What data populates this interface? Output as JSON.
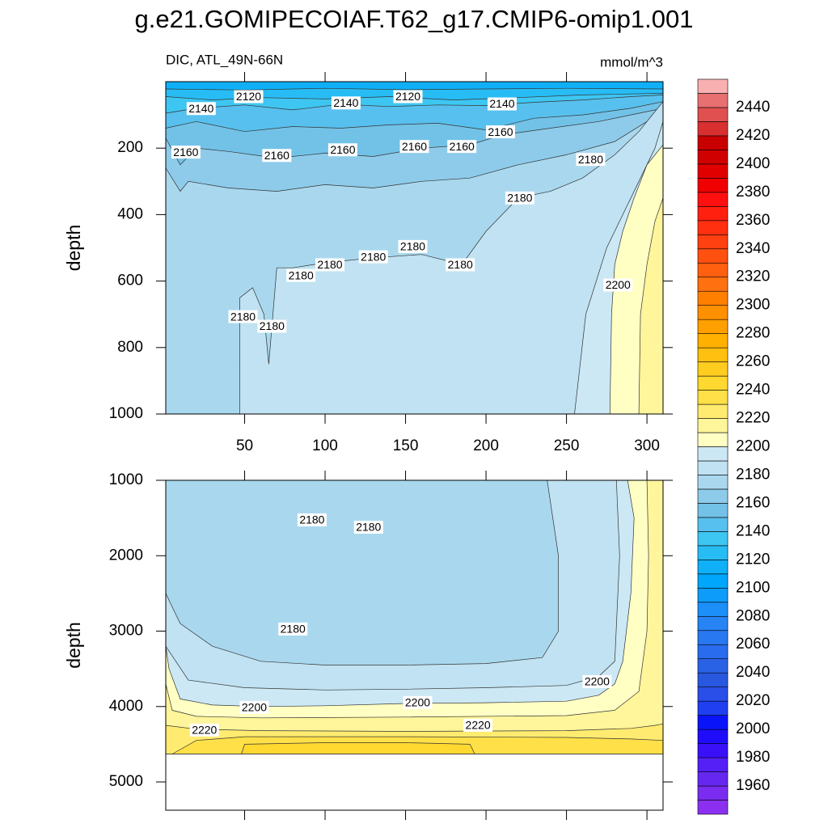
{
  "title": "g.e21.GOMIPECOIAF.T62_g17.CMIP6-omip1.001",
  "chart_data": [
    {
      "type": "contour",
      "subtitle_left": "DIC, ATL_49N-66N",
      "subtitle_right": "mmol/m^3",
      "y_label": "depth",
      "xlim": [
        1,
        310
      ],
      "xticks": [
        50,
        100,
        150,
        200,
        250,
        300
      ],
      "show_xtick_labels": true,
      "ylim": [
        0,
        1000
      ],
      "yticks": [
        200,
        400,
        600,
        800,
        1000
      ],
      "y_reversed": true,
      "base_level": 2110,
      "data_ylim": [
        0,
        1000
      ],
      "contours": [
        {
          "level": 2120,
          "x": [
            1,
            50,
            100,
            150,
            200,
            250,
            310,
            310,
            1
          ],
          "y": [
            22,
            25,
            20,
            24,
            22,
            20,
            22,
            1000,
            1000
          ]
        },
        {
          "level": 2130,
          "x": [
            1,
            30,
            60,
            100,
            140,
            180,
            220,
            260,
            310,
            310,
            1
          ],
          "y": [
            45,
            55,
            48,
            52,
            45,
            55,
            48,
            40,
            35,
            1000,
            1000
          ]
        },
        {
          "level": 2140,
          "x": [
            1,
            20,
            50,
            80,
            110,
            140,
            170,
            200,
            230,
            260,
            290,
            310,
            310,
            1
          ],
          "y": [
            95,
            80,
            70,
            85,
            68,
            75,
            70,
            72,
            62,
            55,
            45,
            40,
            1000,
            1000
          ]
        },
        {
          "level": 2150,
          "x": [
            1,
            20,
            50,
            80,
            110,
            140,
            170,
            200,
            230,
            260,
            290,
            310,
            310,
            1
          ],
          "y": [
            140,
            120,
            150,
            135,
            140,
            130,
            125,
            145,
            110,
            100,
            80,
            60,
            1000,
            1000
          ]
        },
        {
          "level": 2160,
          "x": [
            1,
            10,
            20,
            40,
            70,
            100,
            130,
            160,
            190,
            210,
            240,
            270,
            290,
            310,
            310,
            1
          ],
          "y": [
            170,
            250,
            200,
            210,
            230,
            215,
            225,
            200,
            190,
            160,
            140,
            120,
            100,
            80,
            1000,
            1000
          ]
        },
        {
          "level": 2170,
          "x": [
            1,
            10,
            15,
            40,
            70,
            100,
            130,
            160,
            190,
            220,
            250,
            280,
            300,
            310,
            310,
            1
          ],
          "y": [
            260,
            330,
            300,
            320,
            330,
            310,
            320,
            300,
            290,
            250,
            220,
            180,
            120,
            100,
            1000,
            1000
          ]
        },
        {
          "level": 2180,
          "x": [
            47,
            47,
            55,
            62,
            65,
            70,
            80,
            100,
            130,
            160,
            185,
            200,
            220,
            240,
            260,
            280,
            295,
            305,
            310,
            310,
            47
          ],
          "y": [
            1000,
            650,
            620,
            700,
            850,
            560,
            560,
            545,
            530,
            520,
            550,
            450,
            350,
            330,
            290,
            220,
            150,
            90,
            60,
            1000,
            1000
          ]
        },
        {
          "level": 2190,
          "x": [
            255,
            262,
            275,
            290,
            305,
            310,
            310,
            255
          ],
          "y": [
            1000,
            700,
            500,
            350,
            200,
            120,
            1000,
            1000
          ]
        },
        {
          "level": 2200,
          "x": [
            277,
            278,
            280,
            285,
            292,
            300,
            310,
            310,
            277
          ],
          "y": [
            1000,
            700,
            550,
            450,
            350,
            250,
            190,
            1000,
            1000
          ]
        },
        {
          "level": 2210,
          "x": [
            295,
            296,
            300,
            305,
            310,
            310,
            295
          ],
          "y": [
            1000,
            700,
            550,
            420,
            350,
            1000,
            1000
          ]
        }
      ],
      "contour_labels": [
        {
          "level": 2120,
          "x": 52.5,
          "y": 45
        },
        {
          "level": 2120,
          "x": 151.5,
          "y": 45
        },
        {
          "level": 2140,
          "x": 23,
          "y": 81
        },
        {
          "level": 2140,
          "x": 113,
          "y": 64
        },
        {
          "level": 2140,
          "x": 210,
          "y": 67
        },
        {
          "level": 2160,
          "x": 209,
          "y": 151
        },
        {
          "level": 2160,
          "x": 13.5,
          "y": 212
        },
        {
          "level": 2160,
          "x": 70,
          "y": 222
        },
        {
          "level": 2160,
          "x": 111,
          "y": 205
        },
        {
          "level": 2160,
          "x": 155.5,
          "y": 195
        },
        {
          "level": 2160,
          "x": 185,
          "y": 195
        },
        {
          "level": 2180,
          "x": 265,
          "y": 234
        },
        {
          "level": 2180,
          "x": 221,
          "y": 350
        },
        {
          "level": 2180,
          "x": 154.5,
          "y": 496
        },
        {
          "level": 2180,
          "x": 184,
          "y": 551
        },
        {
          "level": 2180,
          "x": 130,
          "y": 527
        },
        {
          "level": 2180,
          "x": 103,
          "y": 551
        },
        {
          "level": 2180,
          "x": 85,
          "y": 583
        },
        {
          "level": 2180,
          "x": 49,
          "y": 707
        },
        {
          "level": 2180,
          "x": 67,
          "y": 736
        },
        {
          "level": 2200,
          "x": 282,
          "y": 612
        }
      ]
    },
    {
      "type": "contour",
      "y_label": "depth",
      "xlim": [
        1,
        310
      ],
      "xticks": [
        50,
        100,
        150,
        200,
        250,
        300
      ],
      "show_xtick_labels": false,
      "ylim": [
        1000,
        5375
      ],
      "yticks": [
        1000,
        2000,
        3000,
        4000,
        5000
      ],
      "y_reversed": true,
      "base_level": 2180,
      "data_ylim": [
        1000,
        4630
      ],
      "contours": [
        {
          "level": 2170,
          "x": [
            1,
            1,
            10,
            30,
            60,
            100,
            150,
            200,
            235,
            245,
            245,
            238
          ],
          "y": [
            1000,
            2500,
            2900,
            3200,
            3400,
            3450,
            3450,
            3430,
            3350,
            3000,
            2000,
            1000
          ]
        },
        {
          "level": 2190,
          "x": [
            1,
            15,
            50,
            100,
            150,
            200,
            250,
            270,
            280,
            283,
            281,
            310,
            310,
            1
          ],
          "y": [
            3200,
            3650,
            3750,
            3780,
            3770,
            3750,
            3720,
            3600,
            3400,
            2000,
            1000,
            1000,
            4630,
            4630
          ]
        },
        {
          "level": 2200,
          "x": [
            1,
            3,
            10,
            30,
            60,
            100,
            150,
            200,
            250,
            270,
            280,
            285,
            290,
            292,
            288,
            310,
            310,
            1
          ],
          "y": [
            3200,
            3500,
            3900,
            3980,
            4000,
            3990,
            3960,
            3950,
            3930,
            3850,
            3700,
            3400,
            2500,
            1500,
            1000,
            1000,
            4630,
            4630
          ]
        },
        {
          "level": 2210,
          "x": [
            1,
            5,
            20,
            60,
            150,
            250,
            280,
            295,
            300,
            301,
            300,
            310,
            310,
            1
          ],
          "y": [
            3700,
            4050,
            4130,
            4150,
            4140,
            4120,
            4050,
            3800,
            3000,
            2000,
            1000,
            1000,
            4630,
            4630
          ]
        },
        {
          "level": 2220,
          "x": [
            1,
            20,
            60,
            150,
            250,
            290,
            305,
            310,
            310,
            1
          ],
          "y": [
            4250,
            4300,
            4320,
            4330,
            4320,
            4290,
            4250,
            4230,
            4630,
            4630
          ]
        },
        {
          "level": 2230,
          "x": [
            5,
            20,
            50,
            150,
            250,
            290,
            310,
            310,
            5
          ],
          "y": [
            4630,
            4450,
            4400,
            4400,
            4410,
            4430,
            4450,
            4630,
            4630
          ]
        },
        {
          "level": 2240,
          "x": [
            48,
            50,
            100,
            150,
            190,
            193,
            48
          ],
          "y": [
            4630,
            4500,
            4480,
            4480,
            4500,
            4630,
            4630
          ]
        }
      ],
      "contour_labels": [
        {
          "level": 2180,
          "x": 91.9,
          "y": 1525
        },
        {
          "level": 2180,
          "x": 127,
          "y": 1622
        },
        {
          "level": 2180,
          "x": 80,
          "y": 2972
        },
        {
          "level": 2200,
          "x": 269,
          "y": 3669
        },
        {
          "level": 2200,
          "x": 56,
          "y": 4012
        },
        {
          "level": 2200,
          "x": 157.5,
          "y": 3947
        },
        {
          "level": 2220,
          "x": 25,
          "y": 4312
        },
        {
          "level": 2220,
          "x": 195,
          "y": 4248
        }
      ]
    }
  ],
  "colorbar": {
    "lim": [
      1940,
      2460
    ],
    "ticks": [
      1960,
      1980,
      2000,
      2020,
      2040,
      2060,
      2080,
      2100,
      2120,
      2140,
      2160,
      2180,
      2200,
      2220,
      2240,
      2260,
      2280,
      2300,
      2320,
      2340,
      2360,
      2380,
      2400,
      2420,
      2440
    ],
    "colors": [
      "#8b30f0",
      "#7a2cf0",
      "#6628f0",
      "#5520f5",
      "#3a10f8",
      "#1e0cfa",
      "#0a14f8",
      "#1f3ff0",
      "#2a4ee8",
      "#2858e0",
      "#2a62e6",
      "#2a6cee",
      "#2878f2",
      "#2684f5",
      "#1c8ff8",
      "#0e9cfa",
      "#00a6fb",
      "#10b0f8",
      "#28bcf5",
      "#3ec6f2",
      "#58c0ee",
      "#72c2e8",
      "#8ecbea",
      "#a9d8ee",
      "#c0e2f2",
      "#cce8f5",
      "#ffffc4",
      "#fff59a",
      "#ffeb70",
      "#ffe048",
      "#ffd830",
      "#ffcc20",
      "#ffc010",
      "#ffb000",
      "#ffa000",
      "#ff9000",
      "#ff8000",
      "#ff7010",
      "#ff6010",
      "#ff5010",
      "#ff4010",
      "#ff3010",
      "#ff2010",
      "#ff1010",
      "#f00000",
      "#e00000",
      "#d00000",
      "#c80000",
      "#d83030",
      "#e05050",
      "#e87070",
      "#f8b0b0"
    ]
  }
}
